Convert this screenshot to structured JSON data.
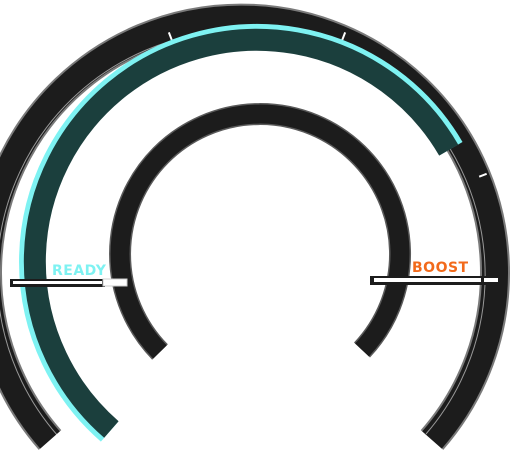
{
  "gauge": {
    "ready_label": "READY",
    "boost_label": "BOOST",
    "ready_color": "#7ef2f2",
    "boost_color": "#f26a1b",
    "track_color": "#1c1c1c",
    "fill_color": "#1b3f3d",
    "fill_edge_color": "#7ef2f2",
    "fill_level": 0.72
  }
}
